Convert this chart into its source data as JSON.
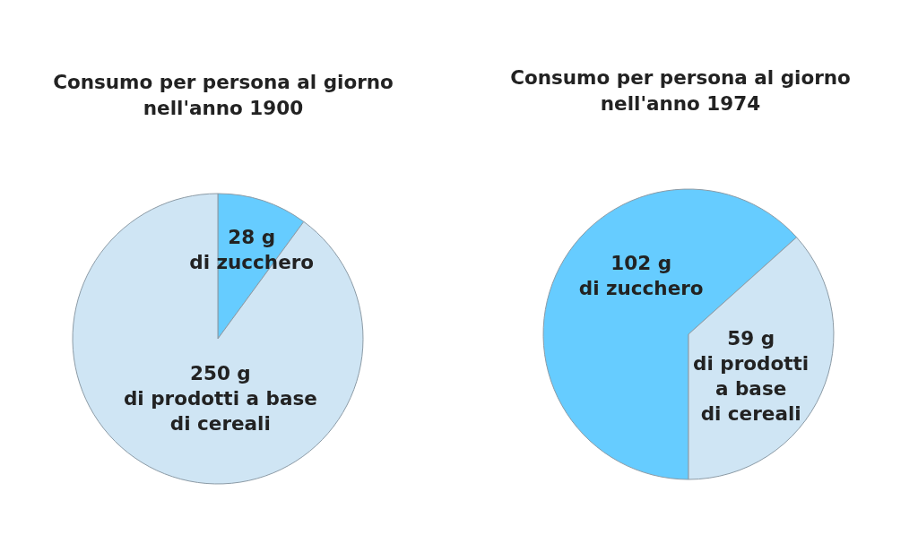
{
  "chart_data": [
    {
      "type": "pie",
      "title": "Consumo per persona al giorno\nnell'anno 1900",
      "categories": [
        "di zucchero",
        "di prodotti a base\ndi cereali"
      ],
      "values": [
        28,
        250
      ],
      "value_labels": [
        "28 g",
        "250 g"
      ],
      "colors": [
        "#66ccff",
        "#cfe5f4"
      ]
    },
    {
      "type": "pie",
      "title": "Consumo per persona al giorno\nnell'anno 1974",
      "categories": [
        "di zucchero",
        "di prodotti\na base\ndi cereali"
      ],
      "values": [
        102,
        59
      ],
      "value_labels": [
        "102 g",
        "59 g"
      ],
      "colors": [
        "#66ccff",
        "#cfe5f4"
      ]
    }
  ]
}
